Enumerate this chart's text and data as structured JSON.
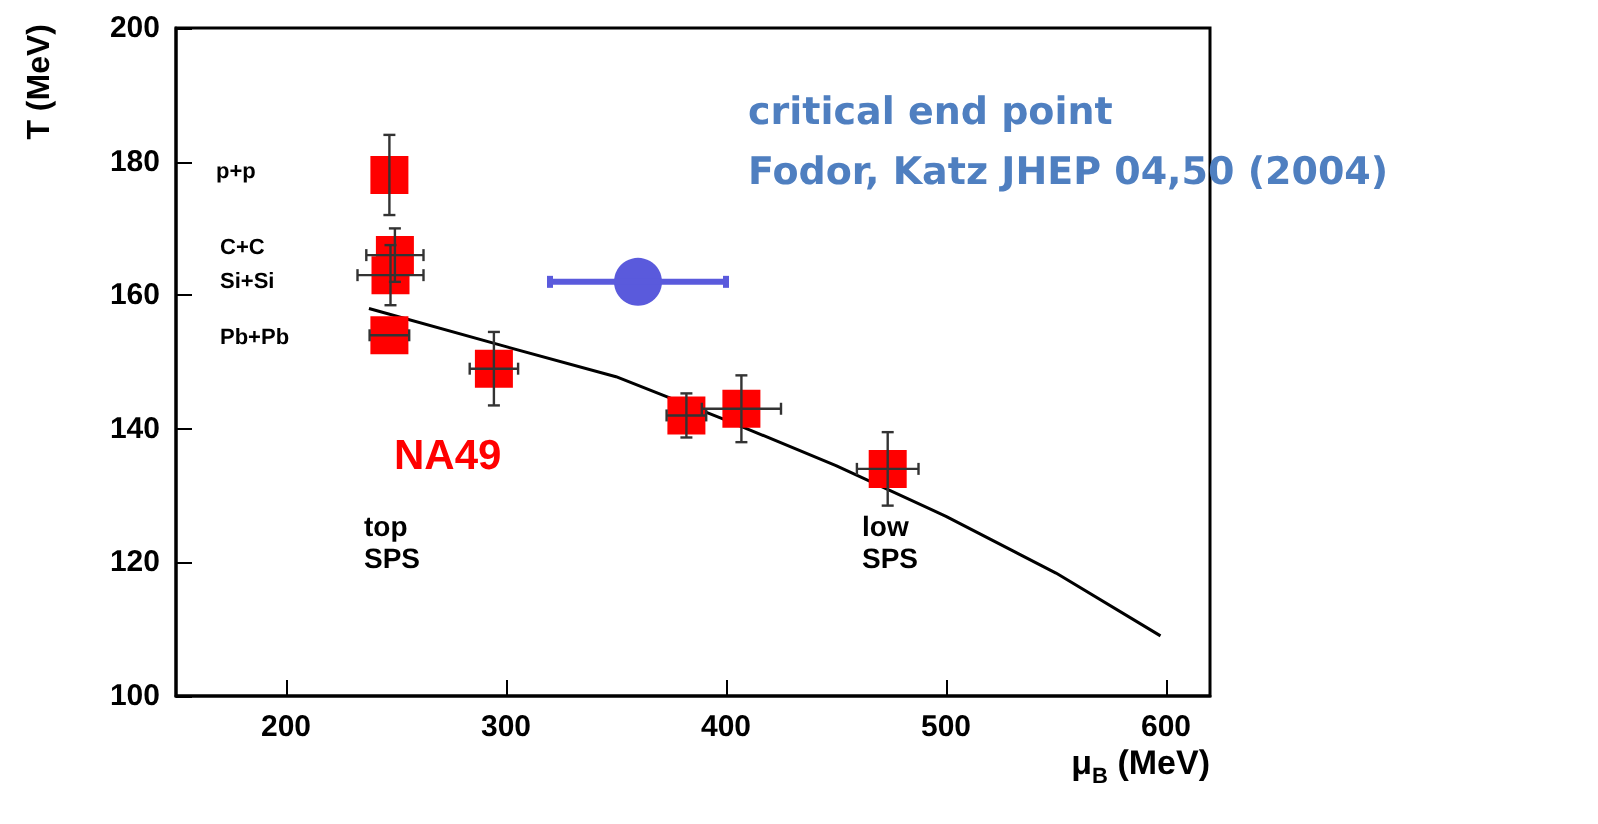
{
  "chart_data": {
    "type": "scatter",
    "xlabel": "μ$_{B}$ (MeV)",
    "ylabel": "T (MeV)",
    "xlim": [
      150,
      620
    ],
    "xticks": [
      200,
      300,
      400,
      500,
      600
    ],
    "ylim": [
      100,
      200
    ],
    "yticks": [
      100,
      120,
      140,
      160,
      180,
      200
    ],
    "grid": false,
    "legend": false,
    "series": [
      {
        "name": "NA49",
        "marker": "square",
        "color": "#ff0000",
        "x": [
          247,
          249.5,
          247.5,
          247,
          294.5,
          382,
          407,
          473.5
        ],
        "values": [
          178,
          166,
          163,
          154,
          149,
          142,
          143,
          134
        ],
        "errors": [
          6,
          4,
          4.5,
          null,
          5.5,
          3.3,
          5,
          5.5
        ],
        "xerrors": [
          null,
          13,
          15,
          9,
          11,
          9,
          18,
          14
        ]
      },
      {
        "marker": "circle",
        "color": "#5a5adc",
        "x": [
          360
        ],
        "values": [
          162
        ],
        "xerrors": [
          40
        ]
      },
      {
        "type": "line",
        "marker": "none",
        "color": "#000000",
        "x": [
          237.7,
          300,
          350,
          400,
          450,
          500,
          550,
          597.5
        ],
        "values": [
          158,
          152.3,
          147.8,
          141.3,
          134.5,
          126.9,
          118.4,
          109
        ]
      }
    ],
    "annotations": [
      "p+p",
      "C+C",
      "Si+Si",
      "Pb+Pb",
      "top\nSPS",
      "low\nSPS",
      "critical end point\nFodor, Katz JHEP 04,50 (2004)"
    ]
  }
}
